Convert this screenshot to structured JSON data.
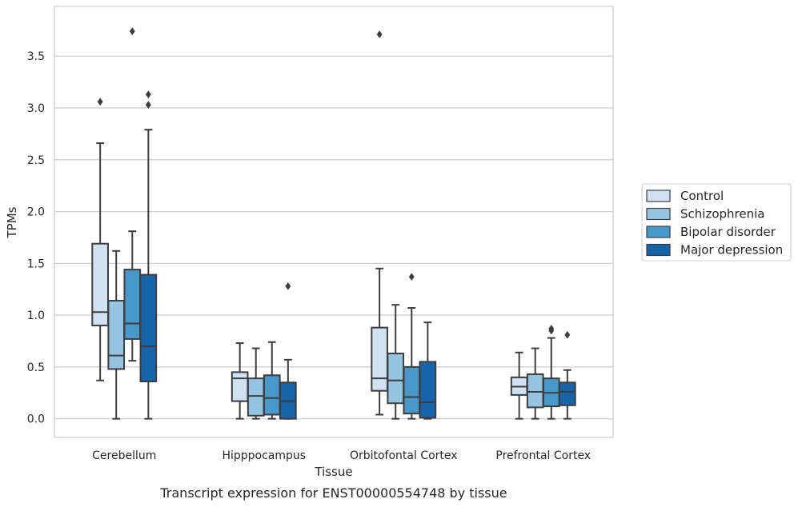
{
  "chart_data": {
    "type": "boxplot",
    "title": "",
    "caption": "Transcript expression for ENST00000554748 by tissue",
    "xlabel": "Tissue",
    "ylabel": "TPMs",
    "ylim": [
      -0.18,
      3.98
    ],
    "yticks": [
      0.0,
      0.5,
      1.0,
      1.5,
      2.0,
      2.5,
      3.0,
      3.5
    ],
    "ytick_labels": [
      "0.0",
      "0.5",
      "1.0",
      "1.5",
      "2.0",
      "2.5",
      "3.0",
      "3.5"
    ],
    "grid": "horizontal",
    "legend_position": "right",
    "categories": [
      "Cerebellum",
      "Hipppocampus",
      "Orbitofontal Cortex",
      "Prefrontal Cortex"
    ],
    "series": [
      {
        "name": "Control",
        "color": "#d0e1f2",
        "boxes": [
          {
            "whislo": 0.37,
            "q1": 0.9,
            "med": 1.03,
            "q3": 1.69,
            "whishi": 2.66,
            "fliers": [
              3.06
            ]
          },
          {
            "whislo": 0.0,
            "q1": 0.17,
            "med": 0.39,
            "q3": 0.45,
            "whishi": 0.73,
            "fliers": []
          },
          {
            "whislo": 0.04,
            "q1": 0.27,
            "med": 0.39,
            "q3": 0.88,
            "whishi": 1.45,
            "fliers": [
              3.71
            ]
          },
          {
            "whislo": 0.0,
            "q1": 0.23,
            "med": 0.31,
            "q3": 0.4,
            "whishi": 0.64,
            "fliers": []
          }
        ]
      },
      {
        "name": "Schizophrenia",
        "color": "#94c4df",
        "boxes": [
          {
            "whislo": 0.0,
            "q1": 0.48,
            "med": 0.61,
            "q3": 1.14,
            "whishi": 1.62,
            "fliers": []
          },
          {
            "whislo": 0.0,
            "q1": 0.03,
            "med": 0.22,
            "q3": 0.39,
            "whishi": 0.68,
            "fliers": []
          },
          {
            "whislo": 0.0,
            "q1": 0.15,
            "med": 0.37,
            "q3": 0.63,
            "whishi": 1.1,
            "fliers": []
          },
          {
            "whislo": 0.0,
            "q1": 0.11,
            "med": 0.26,
            "q3": 0.43,
            "whishi": 0.68,
            "fliers": []
          }
        ]
      },
      {
        "name": "Bipolar disorder",
        "color": "#4a98c9",
        "boxes": [
          {
            "whislo": 0.56,
            "q1": 0.77,
            "med": 0.92,
            "q3": 1.44,
            "whishi": 1.81,
            "fliers": [
              3.74
            ]
          },
          {
            "whislo": 0.0,
            "q1": 0.04,
            "med": 0.2,
            "q3": 0.42,
            "whishi": 0.74,
            "fliers": []
          },
          {
            "whislo": 0.0,
            "q1": 0.05,
            "med": 0.21,
            "q3": 0.5,
            "whishi": 1.07,
            "fliers": [
              1.37
            ]
          },
          {
            "whislo": 0.0,
            "q1": 0.12,
            "med": 0.25,
            "q3": 0.39,
            "whishi": 0.78,
            "fliers": [
              0.85,
              0.87
            ]
          }
        ]
      },
      {
        "name": "Major depression",
        "color": "#1764ab",
        "boxes": [
          {
            "whislo": 0.0,
            "q1": 0.36,
            "med": 0.7,
            "q3": 1.39,
            "whishi": 2.79,
            "fliers": [
              3.03,
              3.13
            ]
          },
          {
            "whislo": 0.0,
            "q1": 0.0,
            "med": 0.17,
            "q3": 0.35,
            "whishi": 0.57,
            "fliers": [
              1.28
            ]
          },
          {
            "whislo": 0.0,
            "q1": 0.01,
            "med": 0.16,
            "q3": 0.55,
            "whishi": 0.93,
            "fliers": []
          },
          {
            "whislo": 0.0,
            "q1": 0.13,
            "med": 0.26,
            "q3": 0.35,
            "whishi": 0.47,
            "fliers": [
              0.81
            ]
          }
        ]
      }
    ]
  },
  "colors": {
    "edge": "#3d3d3d",
    "grid": "#cccccc",
    "frame": "#cccccc"
  }
}
